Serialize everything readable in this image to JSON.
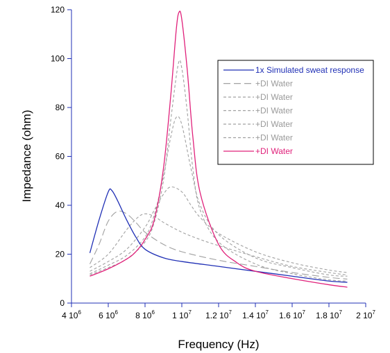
{
  "chart_data": {
    "type": "line",
    "title": "",
    "xlabel": "Frequency (Hz)",
    "ylabel": "Impedance (ohm)",
    "xlim": [
      4000000,
      20000000
    ],
    "ylim": [
      0,
      120
    ],
    "grid": false,
    "legend_position": "top-right",
    "x_ticks": [
      {
        "value": 4000000,
        "mantissa": "4 10",
        "exp": "6"
      },
      {
        "value": 6000000,
        "mantissa": "6 10",
        "exp": "6"
      },
      {
        "value": 8000000,
        "mantissa": "8 10",
        "exp": "6"
      },
      {
        "value": 10000000,
        "mantissa": "1 10",
        "exp": "7"
      },
      {
        "value": 12000000,
        "mantissa": "1.2 10",
        "exp": "7"
      },
      {
        "value": 14000000,
        "mantissa": "1.4 10",
        "exp": "7"
      },
      {
        "value": 16000000,
        "mantissa": "1.6 10",
        "exp": "7"
      },
      {
        "value": 18000000,
        "mantissa": "1.8 10",
        "exp": "7"
      },
      {
        "value": 20000000,
        "mantissa": "2 10",
        "exp": "7"
      }
    ],
    "y_ticks": [
      {
        "value": 0,
        "label": "0"
      },
      {
        "value": 20,
        "label": "20"
      },
      {
        "value": 40,
        "label": "40"
      },
      {
        "value": 60,
        "label": "60"
      },
      {
        "value": 80,
        "label": "80"
      },
      {
        "value": 100,
        "label": "100"
      },
      {
        "value": 120,
        "label": "120"
      }
    ],
    "series": [
      {
        "name": "1x Simulated sweat response",
        "color": "#1f2fb5",
        "style": "solid",
        "x": [
          5000000,
          5500000,
          6000000,
          6200000,
          6500000,
          7000000,
          7500000,
          8000000,
          9000000,
          10000000,
          12000000,
          14000000,
          16000000,
          18000000,
          19000000
        ],
        "y": [
          20.5,
          34,
          45.5,
          46,
          42,
          34,
          27,
          22,
          18.5,
          17,
          15,
          13,
          11,
          9,
          8.5
        ]
      },
      {
        "name": "+DI Water",
        "color": "#a0a0a0",
        "style": "long-dash",
        "x": [
          5000000,
          5500000,
          6000000,
          6500000,
          7000000,
          7500000,
          8000000,
          9000000,
          10000000,
          12000000,
          14000000,
          16000000,
          18000000,
          19000000
        ],
        "y": [
          16,
          24,
          33.5,
          37.5,
          36.5,
          33,
          29,
          24,
          21,
          17.5,
          15,
          12.5,
          10.5,
          9.8
        ]
      },
      {
        "name": "+DI Water",
        "color": "#a0a0a0",
        "style": "short-dash",
        "x": [
          5000000,
          6000000,
          7000000,
          7600000,
          8000000,
          8500000,
          9000000,
          10000000,
          11000000,
          12000000,
          14000000,
          16000000,
          18000000,
          19000000
        ],
        "y": [
          14.5,
          20,
          30,
          35,
          36.5,
          35.5,
          33,
          29,
          26,
          23.5,
          19,
          15,
          12.5,
          11.5
        ]
      },
      {
        "name": "+DI Water",
        "color": "#a0a0a0",
        "style": "short-dash",
        "x": [
          5000000,
          6000000,
          7000000,
          8000000,
          8500000,
          9000000,
          9400000,
          10000000,
          10500000,
          11000000,
          12000000,
          14000000,
          16000000,
          18000000,
          19000000
        ],
        "y": [
          13,
          17,
          22,
          31,
          38,
          44.5,
          47.5,
          45.5,
          40,
          35,
          28.5,
          21,
          16.5,
          13.5,
          12.5
        ]
      },
      {
        "name": "+DI Water",
        "color": "#a0a0a0",
        "style": "short-dash",
        "x": [
          5000000,
          6000000,
          7000000,
          8000000,
          8500000,
          9000000,
          9400000,
          9700000,
          10000000,
          10500000,
          11000000,
          12000000,
          14000000,
          16000000,
          18000000,
          19000000
        ],
        "y": [
          12,
          15.5,
          19.5,
          27,
          36,
          52,
          68,
          76,
          73,
          55,
          40,
          28,
          18.5,
          14.5,
          11.5,
          11
        ]
      },
      {
        "name": "+DI Water",
        "color": "#a0a0a0",
        "style": "short-dash",
        "x": [
          5000000,
          6000000,
          7000000,
          8000000,
          8500000,
          9000000,
          9400000,
          9800000,
          10000000,
          10300000,
          10600000,
          11000000,
          12000000,
          14000000,
          16000000,
          18000000,
          19000000
        ],
        "y": [
          11.5,
          14.5,
          18,
          25,
          33,
          50,
          75,
          97.5,
          96,
          78,
          55,
          38,
          25,
          16,
          12,
          9.5,
          9
        ]
      },
      {
        "name": "+DI Water",
        "color": "#e0207a",
        "style": "solid",
        "x": [
          5000000,
          6000000,
          7000000,
          7500000,
          8000000,
          8500000,
          9000000,
          9400000,
          9700000,
          9850000,
          10000000,
          10300000,
          10600000,
          11000000,
          12000000,
          13000000,
          14000000,
          16000000,
          18000000,
          19000000
        ],
        "y": [
          11,
          14,
          18,
          21,
          26,
          34,
          55,
          85,
          112,
          119,
          116,
          95,
          68,
          45,
          24,
          16.5,
          13,
          10,
          7.5,
          6.5
        ]
      }
    ]
  }
}
